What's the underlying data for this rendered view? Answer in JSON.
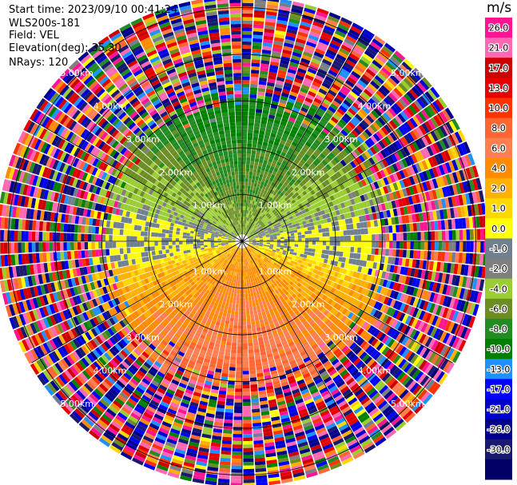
{
  "info": {
    "start_time": "Start time: 2023/09/10 00:41:24",
    "station": "WLS200s-181",
    "field": "Field: VEL",
    "elevation": "Elevation(deg): 35.30",
    "nrays": "NRays: 120"
  },
  "chart_data": {
    "type": "heatmap",
    "projection": "polar PPI",
    "title": "",
    "field": "VEL",
    "units": "m/s",
    "elevation_deg": 35.3,
    "n_rays": 120,
    "range_rings_km": [
      1.0,
      2.0,
      3.0,
      4.0,
      5.0
    ],
    "ring_labels": [
      "1.00km",
      "2.00km",
      "3.00km",
      "4.00km",
      "5.00km"
    ],
    "radial_lines_deg": [
      0,
      30,
      60,
      90,
      120,
      150,
      180,
      210,
      240,
      270,
      300,
      330
    ],
    "velocity_pattern": {
      "north_sector": "negative (approaching), about -2 to -12 m/s near center",
      "south_sector": "positive (receding), about 2 to 10 m/s near center",
      "outer_ranges": "noisy values spanning full scale"
    },
    "colorbar": {
      "label": "m/s",
      "ticks": [
        "26.0",
        "21.0",
        "17.0",
        "13.0",
        "10.0",
        "8.0",
        "6.0",
        "4.0",
        "2.0",
        "1.0",
        "0.0",
        "-1.0",
        "-2.0",
        "-4.0",
        "-6.0",
        "-8.0",
        "-10.0",
        "-13.0",
        "-17.0",
        "-21.0",
        "-26.0",
        "-30.0"
      ],
      "colors": [
        "#ff1493",
        "#ff69b4",
        "#cc0000",
        "#e60000",
        "#ff3300",
        "#ff6633",
        "#ff7f50",
        "#ff8c00",
        "#ffb000",
        "#ffd700",
        "#ffff00",
        "#708090",
        "#7f7f7f",
        "#9acd32",
        "#6b8e23",
        "#228b22",
        "#008000",
        "#1e90ff",
        "#0000ff",
        "#0000cd",
        "#00008b",
        "#191970",
        "#000066"
      ]
    }
  }
}
